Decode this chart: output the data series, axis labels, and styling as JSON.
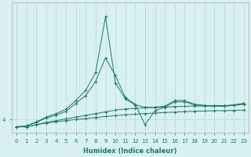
{
  "xlabel": "Humidex (Indice chaleur)",
  "bg_color": "#d8f0ef",
  "line_color": "#1a7a6e",
  "grid_color": "#b8d8d5",
  "x_ticks": [
    0,
    1,
    2,
    3,
    4,
    5,
    6,
    7,
    8,
    9,
    10,
    11,
    12,
    13,
    14,
    15,
    16,
    17,
    18,
    19,
    20,
    21,
    22,
    23
  ],
  "y_tick_val": 4.0,
  "y_tick_label": "4",
  "ylim_min": 3.55,
  "ylim_max": 8.0,
  "series": [
    {
      "x": [
        0,
        1,
        2,
        3,
        4,
        5,
        6,
        7,
        8,
        9,
        10,
        11,
        12,
        13,
        14,
        15,
        16,
        17,
        18,
        19,
        20,
        21,
        22,
        23
      ],
      "y": [
        3.75,
        3.75,
        3.82,
        3.88,
        3.92,
        3.96,
        4.0,
        4.03,
        4.07,
        4.1,
        4.13,
        4.16,
        4.18,
        4.2,
        4.22,
        4.24,
        4.25,
        4.27,
        4.28,
        4.29,
        4.3,
        4.3,
        4.31,
        4.32
      ]
    },
    {
      "x": [
        0,
        1,
        2,
        3,
        4,
        5,
        6,
        7,
        8,
        9,
        10,
        11,
        12,
        13,
        14,
        15,
        16,
        17,
        18,
        19,
        20,
        21,
        22,
        23
      ],
      "y": [
        3.75,
        3.75,
        3.82,
        3.9,
        3.96,
        4.02,
        4.08,
        4.14,
        4.2,
        4.26,
        4.32,
        4.36,
        4.38,
        4.4,
        4.41,
        4.42,
        4.44,
        4.45,
        4.46,
        4.46,
        4.47,
        4.47,
        4.48,
        4.52
      ]
    },
    {
      "x": [
        0,
        1,
        2,
        3,
        4,
        5,
        6,
        7,
        8,
        9,
        10,
        11,
        12,
        13,
        14,
        15,
        16,
        17,
        18,
        19,
        20,
        21,
        22,
        23
      ],
      "y": [
        3.75,
        3.78,
        3.9,
        4.05,
        4.15,
        4.28,
        4.55,
        4.82,
        5.3,
        6.1,
        5.5,
        4.75,
        4.52,
        3.82,
        4.3,
        4.42,
        4.6,
        4.6,
        4.5,
        4.47,
        4.45,
        4.45,
        4.48,
        4.55
      ]
    },
    {
      "x": [
        0,
        1,
        2,
        3,
        4,
        5,
        6,
        7,
        8,
        9,
        10,
        11,
        12,
        13,
        14,
        15,
        16,
        17,
        18,
        19,
        20,
        21,
        22,
        23
      ],
      "y": [
        3.75,
        3.78,
        3.92,
        4.08,
        4.2,
        4.35,
        4.65,
        5.0,
        5.6,
        7.5,
        5.25,
        4.7,
        4.5,
        4.42,
        4.42,
        4.45,
        4.65,
        4.65,
        4.52,
        4.48,
        4.47,
        4.47,
        4.5,
        4.55
      ]
    }
  ]
}
